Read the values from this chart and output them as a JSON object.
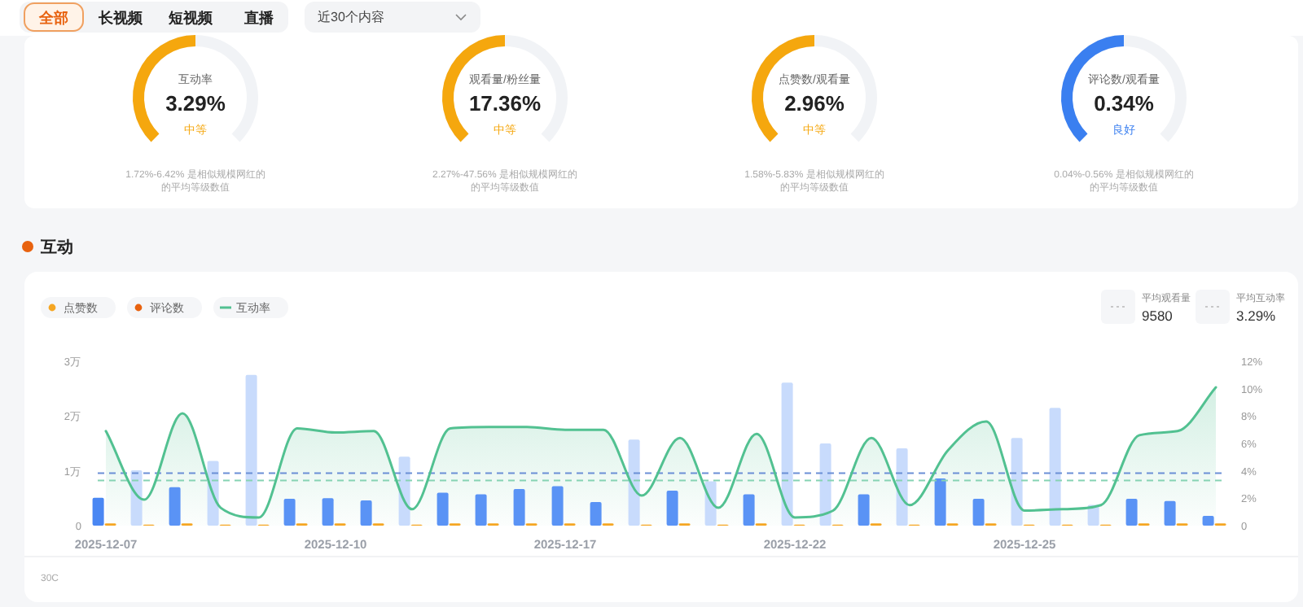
{
  "chart_data": [
    {
      "type": "other",
      "annotations": [
        "全部",
        "长视频",
        "短视频",
        "直播",
        "近30个内容"
      ]
    },
    {
      "type": "other",
      "title": "互动率",
      "color": "#f5a70e",
      "annotations": [
        "3.29%",
        "中等",
        "1.72%-6.42% 是相似规模网红的",
        "的平均等级数值"
      ]
    },
    {
      "type": "other",
      "title": "观看量/粉丝量",
      "color": "#f5a70e",
      "annotations": [
        "17.36%",
        "中等",
        "2.27%-47.56% 是相似规模网红的",
        "的平均等级数值"
      ]
    },
    {
      "type": "other",
      "title": "点赞数/观看量",
      "color": "#f5a70e",
      "annotations": [
        "2.96%",
        "中等",
        "1.58%-5.83% 是相似规模网红的",
        "的平均等级数值"
      ]
    },
    {
      "type": "other",
      "title": "评论数/观看量",
      "color": "#3a7ff0",
      "annotations": [
        "0.34%",
        "良好",
        "0.04%-0.56% 是相似规模网红的",
        "的平均等级数值"
      ]
    },
    {
      "type": "bar",
      "title": "互动",
      "categories": [
        "2025-12-07",
        null,
        null,
        null,
        null,
        null,
        "2025-12-10",
        null,
        null,
        null,
        null,
        null,
        "2025-12-17",
        null,
        null,
        null,
        null,
        null,
        "2025-12-22",
        null,
        null,
        null,
        null,
        null,
        "2025-12-25",
        null,
        null,
        null,
        null,
        null
      ],
      "series": [
        {
          "type": "bar",
          "values": [
            0.51,
            1.01,
            0.7,
            1.18,
            2.75,
            0.49,
            0.5,
            0.46,
            1.26,
            0.6,
            0.57,
            0.67,
            0.72,
            0.43,
            1.57,
            0.64,
            0.81,
            0.57,
            2.61,
            1.5,
            0.57,
            1.41,
            0.86,
            0.49,
            1.6,
            2.15,
            0.38,
            0.49,
            0.45,
            0.18
          ],
          "colors": [
            "#4a87f3",
            "#c8dbfc",
            "#5a93f5",
            "#c8dbfc",
            "#c8dbfc",
            "#5a93f5",
            "#5a93f5",
            "#5a93f5",
            "#c8dbfc",
            "#5a93f5",
            "#5a93f5",
            "#5a93f5",
            "#5a93f5",
            "#5a93f5",
            "#c8dbfc",
            "#5a93f5",
            "#c8dbfc",
            "#5a93f5",
            "#c8dbfc",
            "#c8dbfc",
            "#5a93f5",
            "#c8dbfc",
            "#5a93f5",
            "#5a93f5",
            "#c8dbfc",
            "#c8dbfc",
            "#c8dbfc",
            "#5a93f5",
            "#5a93f5",
            "#5a93f5"
          ]
        },
        {
          "type": "bar",
          "name": "点赞数",
          "color": "#f5a623",
          "values": [
            0.04,
            0.02,
            0.04,
            0.02,
            0.02,
            0.04,
            0.04,
            0.04,
            0.02,
            0.04,
            0.04,
            0.04,
            0.04,
            0.04,
            0.02,
            0.04,
            0.02,
            0.04,
            0.02,
            0.02,
            0.04,
            0.02,
            0.04,
            0.04,
            0.02,
            0.02,
            0.02,
            0.04,
            0.04,
            0.04
          ]
        },
        {
          "type": "bar",
          "name": "评论数",
          "color": "#e8620f",
          "values": [
            0,
            0,
            0,
            0,
            0,
            0,
            0,
            0,
            0,
            0,
            0,
            0,
            0,
            0,
            0,
            0,
            0,
            0,
            0,
            0,
            0,
            0,
            0,
            0,
            0,
            0,
            0,
            0,
            0,
            0
          ]
        },
        {
          "type": "area",
          "name": "互动率",
          "axis": "y2",
          "color": "#52c191",
          "values": [
            6.9,
            1.9,
            8.2,
            1.3,
            0.6,
            7.1,
            6.8,
            6.9,
            1.2,
            7.1,
            7.2,
            7.2,
            7.0,
            7.0,
            2.2,
            6.4,
            1.3,
            6.7,
            0.6,
            1.1,
            6.4,
            1.5,
            5.5,
            7.6,
            1.1,
            1.2,
            1.5,
            6.6,
            6.9,
            10.1
          ]
        }
      ],
      "ylim": [
        0,
        3
      ],
      "yticks": [
        0,
        {
          "value": 1,
          "label": "1万"
        },
        {
          "value": 2,
          "label": "2万"
        },
        {
          "value": 3,
          "label": "3万"
        }
      ],
      "y2lim": [
        0,
        12
      ],
      "y2ticks": [
        0,
        {
          "value": 2,
          "label": "2%"
        },
        {
          "value": 4,
          "label": "4%"
        },
        {
          "value": 6,
          "label": "6%"
        },
        {
          "value": 8,
          "label": "8%"
        },
        {
          "value": 10,
          "label": "10%"
        },
        {
          "value": 12,
          "label": "12%"
        }
      ],
      "ref_lines": [
        {
          "axis": "y",
          "value": 0.958,
          "color": "#6b8fd6",
          "line_style": "dashed"
        },
        {
          "axis": "y2",
          "value": 3.29,
          "color": "#86d3b3",
          "line_style": "dashed"
        }
      ],
      "legend": "top left",
      "grid": false,
      "annotations": [
        "平均观看量",
        "9580",
        "平均互动率",
        "3.29%",
        "30C"
      ]
    }
  ]
}
